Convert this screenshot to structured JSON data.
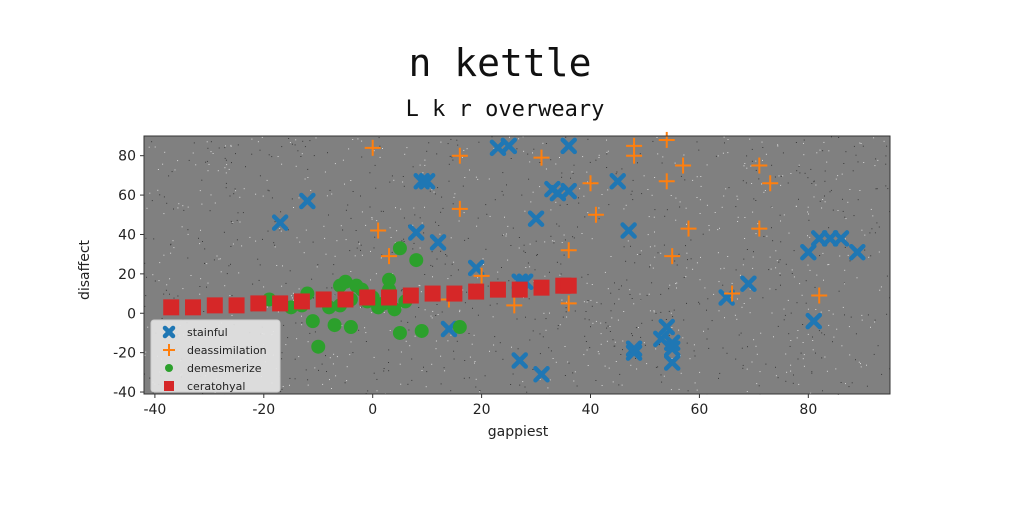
{
  "chart_data": {
    "type": "scatter",
    "title": "n kettle",
    "subtitle": "L k r overweary",
    "xlabel": "gappiest",
    "ylabel": "disaffect",
    "xlim": [
      -42,
      95
    ],
    "ylim": [
      -41,
      90
    ],
    "xticks": [
      -40,
      -20,
      0,
      20,
      40,
      60,
      80
    ],
    "yticks": [
      -40,
      -20,
      0,
      20,
      40,
      60,
      80
    ],
    "grid": false,
    "legend_position": "bottom-left",
    "background": "#808080",
    "series": [
      {
        "name": "stainful",
        "marker": "x",
        "color": "#1f77b4",
        "points": [
          [
            -17,
            46
          ],
          [
            -12,
            57
          ],
          [
            8,
            41
          ],
          [
            9,
            67
          ],
          [
            10,
            67
          ],
          [
            12,
            36
          ],
          [
            19,
            23
          ],
          [
            23,
            84
          ],
          [
            25,
            85
          ],
          [
            27,
            16
          ],
          [
            28,
            16
          ],
          [
            30,
            48
          ],
          [
            33,
            63
          ],
          [
            34,
            61
          ],
          [
            36,
            85
          ],
          [
            36,
            62
          ],
          [
            45,
            67
          ],
          [
            47,
            42
          ],
          [
            48,
            -18
          ],
          [
            48,
            -20
          ],
          [
            53,
            -13
          ],
          [
            54,
            -7
          ],
          [
            55,
            -15
          ],
          [
            55,
            -18
          ],
          [
            55,
            -25
          ],
          [
            65,
            8
          ],
          [
            69,
            15
          ],
          [
            80,
            31
          ],
          [
            81,
            -4
          ],
          [
            82,
            38
          ],
          [
            84,
            38
          ],
          [
            86,
            38
          ],
          [
            89,
            31
          ],
          [
            14,
            -8
          ],
          [
            27,
            -24
          ],
          [
            31,
            -31
          ]
        ]
      },
      {
        "name": "deassimilation",
        "marker": "+",
        "color": "#ff7f0e",
        "points": [
          [
            0,
            84
          ],
          [
            1,
            42
          ],
          [
            3,
            29
          ],
          [
            16,
            80
          ],
          [
            16,
            53
          ],
          [
            20,
            19
          ],
          [
            26,
            4
          ],
          [
            31,
            79
          ],
          [
            36,
            32
          ],
          [
            36,
            5
          ],
          [
            40,
            66
          ],
          [
            41,
            50
          ],
          [
            48,
            85
          ],
          [
            48,
            80
          ],
          [
            54,
            88
          ],
          [
            54,
            67
          ],
          [
            55,
            29
          ],
          [
            57,
            75
          ],
          [
            58,
            43
          ],
          [
            66,
            10
          ],
          [
            71,
            75
          ],
          [
            71,
            43
          ],
          [
            73,
            66
          ],
          [
            82,
            9
          ],
          [
            14,
            7
          ]
        ]
      },
      {
        "name": "demesmerize",
        "marker": "o",
        "color": "#2ca02c",
        "points": [
          [
            -19,
            7
          ],
          [
            -13,
            4
          ],
          [
            -12,
            10
          ],
          [
            -11,
            -4
          ],
          [
            -10,
            -17
          ],
          [
            -8,
            3
          ],
          [
            -7,
            -6
          ],
          [
            -6,
            14
          ],
          [
            -5,
            16
          ],
          [
            -4,
            7
          ],
          [
            -4,
            -7
          ],
          [
            -3,
            14
          ],
          [
            -2,
            12
          ],
          [
            -1,
            6
          ],
          [
            0,
            8
          ],
          [
            1,
            3
          ],
          [
            2,
            5
          ],
          [
            3,
            12
          ],
          [
            3,
            17
          ],
          [
            4,
            2
          ],
          [
            5,
            -10
          ],
          [
            5,
            33
          ],
          [
            6,
            6
          ],
          [
            8,
            27
          ],
          [
            9,
            -9
          ],
          [
            16,
            -7
          ],
          [
            -15,
            3
          ],
          [
            -6,
            4
          ]
        ]
      },
      {
        "name": "ceratohyal",
        "marker": "s",
        "color": "#d62728",
        "points": [
          [
            -37,
            3
          ],
          [
            -33,
            3
          ],
          [
            -29,
            4
          ],
          [
            -25,
            4
          ],
          [
            -21,
            5
          ],
          [
            -17,
            5
          ],
          [
            -13,
            6
          ],
          [
            -9,
            7
          ],
          [
            -5,
            7
          ],
          [
            -1,
            8
          ],
          [
            3,
            8
          ],
          [
            7,
            9
          ],
          [
            11,
            10
          ],
          [
            15,
            10
          ],
          [
            19,
            11
          ],
          [
            23,
            12
          ],
          [
            27,
            12
          ],
          [
            31,
            13
          ],
          [
            35,
            14
          ],
          [
            36,
            14
          ]
        ]
      }
    ]
  }
}
